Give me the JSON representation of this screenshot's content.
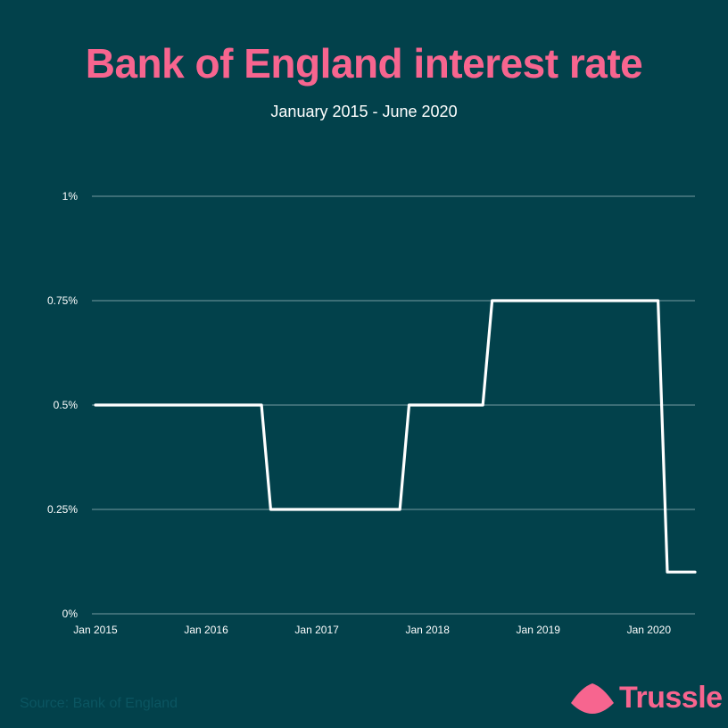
{
  "header": {
    "title": "Bank of England interest rate",
    "subtitle": "January 2015 - June 2020"
  },
  "footer": {
    "source": "Source: Bank of England",
    "brand": "Trussle"
  },
  "colors": {
    "background": "#02414b",
    "accent": "#f7658f",
    "line": "#ffffff",
    "grid": "#9fb9bd"
  },
  "chart_data": {
    "type": "line",
    "title": "Bank of England interest rate",
    "subtitle": "January 2015 - June 2020",
    "xlabel": "",
    "ylabel": "",
    "x_range": [
      "2015-01",
      "2020-06"
    ],
    "ylim": [
      0,
      1
    ],
    "grid": true,
    "legend": "none",
    "x_ticks": [
      "Jan 2015",
      "Jan 2016",
      "Jan 2017",
      "Jan 2018",
      "Jan 2019",
      "Jan 2020"
    ],
    "y_ticks": [
      "0%",
      "0.25%",
      "0.5%",
      "0.75%",
      "1%"
    ],
    "y_tick_values": [
      0,
      0.25,
      0.5,
      0.75,
      1
    ],
    "series": [
      {
        "x": [
          "2015-01",
          "2016-07",
          "2016-08",
          "2017-10",
          "2017-11",
          "2018-07",
          "2018-08",
          "2020-02",
          "2020-03",
          "2020-06"
        ],
        "y": [
          0.5,
          0.5,
          0.25,
          0.25,
          0.5,
          0.5,
          0.75,
          0.75,
          0.1,
          0.1
        ]
      }
    ]
  }
}
